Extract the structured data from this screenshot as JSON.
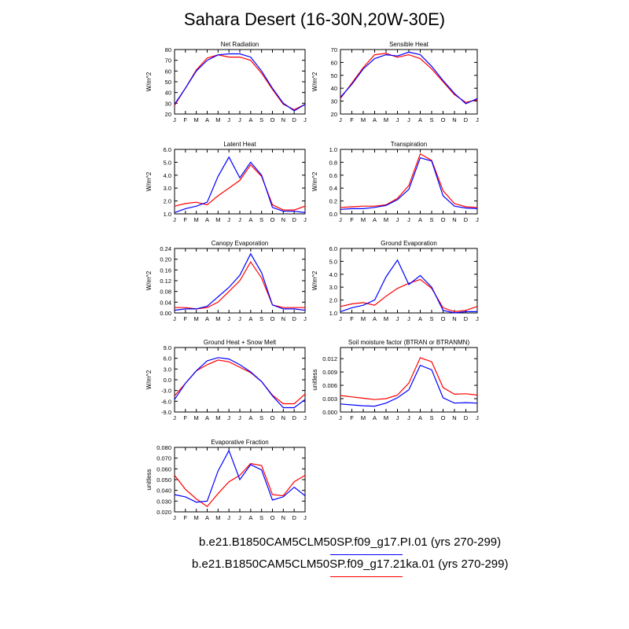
{
  "title": "Sahara Desert (16-30N,20W-30E)",
  "months": [
    "J",
    "F",
    "M",
    "A",
    "M",
    "J",
    "J",
    "A",
    "S",
    "O",
    "N",
    "D",
    "J"
  ],
  "legend": [
    {
      "label": "b.e21.B1850CAM5CLM50SP.f09_g17.PI.01 (yrs 270-299)",
      "color": "#0000ff"
    },
    {
      "label": "b.e21.B1850CAM5CLM50SP.f09_g17.21ka.01 (yrs 270-299)",
      "color": "#ff0000"
    }
  ],
  "colors": {
    "blue": "#0000ff",
    "red": "#ff0000"
  },
  "chart_data": [
    {
      "type": "line",
      "title": "Net Radiation",
      "ylabel": "W/m^2",
      "ylim": [
        20,
        80
      ],
      "yticks": [
        "20",
        "30",
        "40",
        "50",
        "60",
        "70",
        "80"
      ],
      "series": [
        {
          "values": [
            29,
            44,
            60,
            70,
            75,
            76,
            76,
            73,
            60,
            44,
            30,
            23,
            29
          ]
        },
        {
          "values": [
            28,
            44,
            61,
            72,
            75,
            73,
            73,
            70,
            58,
            43,
            29,
            24,
            29
          ]
        }
      ]
    },
    {
      "type": "line",
      "title": "Sensible Heat",
      "ylabel": "W/m^2",
      "ylim": [
        20,
        70
      ],
      "yticks": [
        "20",
        "30",
        "40",
        "50",
        "60",
        "70"
      ],
      "series": [
        {
          "values": [
            33,
            43,
            55,
            63,
            66,
            65,
            68,
            66,
            57,
            46,
            36,
            28,
            32
          ]
        },
        {
          "values": [
            32,
            44,
            56,
            66,
            67,
            64,
            66,
            63,
            55,
            45,
            35,
            29,
            31
          ]
        }
      ]
    },
    {
      "type": "line",
      "title": "Latent Heat",
      "ylabel": "W/m^2",
      "ylim": [
        1.0,
        6.0
      ],
      "yticks": [
        "1.0",
        "2.0",
        "3.0",
        "4.0",
        "5.0",
        "6.0"
      ],
      "series": [
        {
          "values": [
            1.1,
            1.4,
            1.6,
            1.9,
            3.9,
            5.4,
            3.8,
            5.0,
            4.0,
            1.5,
            1.2,
            1.2,
            1.1
          ]
        },
        {
          "values": [
            1.6,
            1.8,
            1.9,
            1.7,
            2.4,
            3.0,
            3.6,
            4.8,
            3.9,
            1.7,
            1.3,
            1.3,
            1.6
          ]
        }
      ]
    },
    {
      "type": "line",
      "title": "Transpiration",
      "ylabel": "W/m^2",
      "ylim": [
        0.0,
        1.0
      ],
      "yticks": [
        "0.0",
        "0.2",
        "0.4",
        "0.6",
        "0.8",
        "1.0"
      ],
      "series": [
        {
          "values": [
            0.07,
            0.08,
            0.08,
            0.1,
            0.13,
            0.22,
            0.38,
            0.87,
            0.82,
            0.28,
            0.12,
            0.09,
            0.08
          ]
        },
        {
          "values": [
            0.1,
            0.11,
            0.12,
            0.12,
            0.14,
            0.24,
            0.44,
            0.93,
            0.83,
            0.36,
            0.16,
            0.11,
            0.1
          ]
        }
      ]
    },
    {
      "type": "line",
      "title": "Canopy Evaporation",
      "ylabel": "W/m^2",
      "ylim": [
        0.0,
        0.24
      ],
      "yticks": [
        "0.00",
        "0.04",
        "0.08",
        "0.12",
        "0.16",
        "0.20",
        "0.24"
      ],
      "series": [
        {
          "values": [
            0.01,
            0.015,
            0.015,
            0.025,
            0.06,
            0.095,
            0.14,
            0.22,
            0.15,
            0.03,
            0.015,
            0.015,
            0.01
          ]
        },
        {
          "values": [
            0.02,
            0.02,
            0.015,
            0.02,
            0.04,
            0.08,
            0.12,
            0.19,
            0.13,
            0.03,
            0.02,
            0.02,
            0.02
          ]
        }
      ]
    },
    {
      "type": "line",
      "title": "Ground Evaporation",
      "ylabel": "W/m^2",
      "ylim": [
        1.0,
        6.0
      ],
      "yticks": [
        "1.0",
        "2.0",
        "3.0",
        "4.0",
        "5.0",
        "6.0"
      ],
      "series": [
        {
          "values": [
            1.1,
            1.4,
            1.6,
            2.0,
            3.8,
            5.1,
            3.2,
            3.9,
            3.0,
            1.2,
            1.0,
            1.1,
            1.1
          ]
        },
        {
          "values": [
            1.5,
            1.7,
            1.8,
            1.6,
            2.3,
            2.9,
            3.3,
            3.6,
            2.9,
            1.4,
            1.1,
            1.2,
            1.5
          ]
        }
      ]
    },
    {
      "type": "line",
      "title": "Ground Heat + Snow Melt",
      "ylabel": "W/m^2",
      "ylim": [
        -9.0,
        9.0
      ],
      "yticks": [
        "-9.0",
        "-6.0",
        "-3.0",
        "0.0",
        "3.0",
        "6.0",
        "9.0"
      ],
      "series": [
        {
          "values": [
            -5.5,
            -1.0,
            2.5,
            5.3,
            6.2,
            5.8,
            4.2,
            2.2,
            -0.5,
            -4.5,
            -7.8,
            -7.8,
            -5.5
          ]
        },
        {
          "values": [
            -4.5,
            -1.0,
            2.5,
            4.2,
            5.5,
            5.0,
            3.5,
            2.0,
            -0.5,
            -4.3,
            -6.7,
            -6.7,
            -4.0
          ]
        }
      ]
    },
    {
      "type": "line",
      "title": "Soil moisture factor (BTRAN or BTRANMN)",
      "ylabel": "unitless",
      "ylim": [
        0.0,
        0.0145
      ],
      "yticks": [
        "0.000",
        "0.003",
        "0.006",
        "0.009",
        "0.012"
      ],
      "yticks_values": [
        0,
        0.003,
        0.006,
        0.009,
        0.012
      ],
      "series": [
        {
          "values": [
            0.0018,
            0.0016,
            0.0014,
            0.0013,
            0.002,
            0.0032,
            0.005,
            0.0105,
            0.0095,
            0.0032,
            0.002,
            0.0021,
            0.002
          ]
        },
        {
          "values": [
            0.0037,
            0.0034,
            0.0031,
            0.0028,
            0.003,
            0.0038,
            0.0065,
            0.0122,
            0.0113,
            0.0055,
            0.004,
            0.0041,
            0.0038
          ]
        }
      ]
    },
    {
      "type": "line",
      "title": "Evaporative Fraction",
      "ylabel": "unitless",
      "ylim": [
        0.02,
        0.08
      ],
      "yticks": [
        "0.020",
        "0.030",
        "0.040",
        "0.050",
        "0.060",
        "0.070",
        "0.080"
      ],
      "series": [
        {
          "values": [
            0.036,
            0.034,
            0.029,
            0.03,
            0.058,
            0.077,
            0.05,
            0.064,
            0.059,
            0.031,
            0.034,
            0.043,
            0.035
          ]
        },
        {
          "values": [
            0.054,
            0.041,
            0.032,
            0.025,
            0.037,
            0.048,
            0.054,
            0.065,
            0.063,
            0.036,
            0.035,
            0.048,
            0.054
          ]
        }
      ]
    }
  ]
}
